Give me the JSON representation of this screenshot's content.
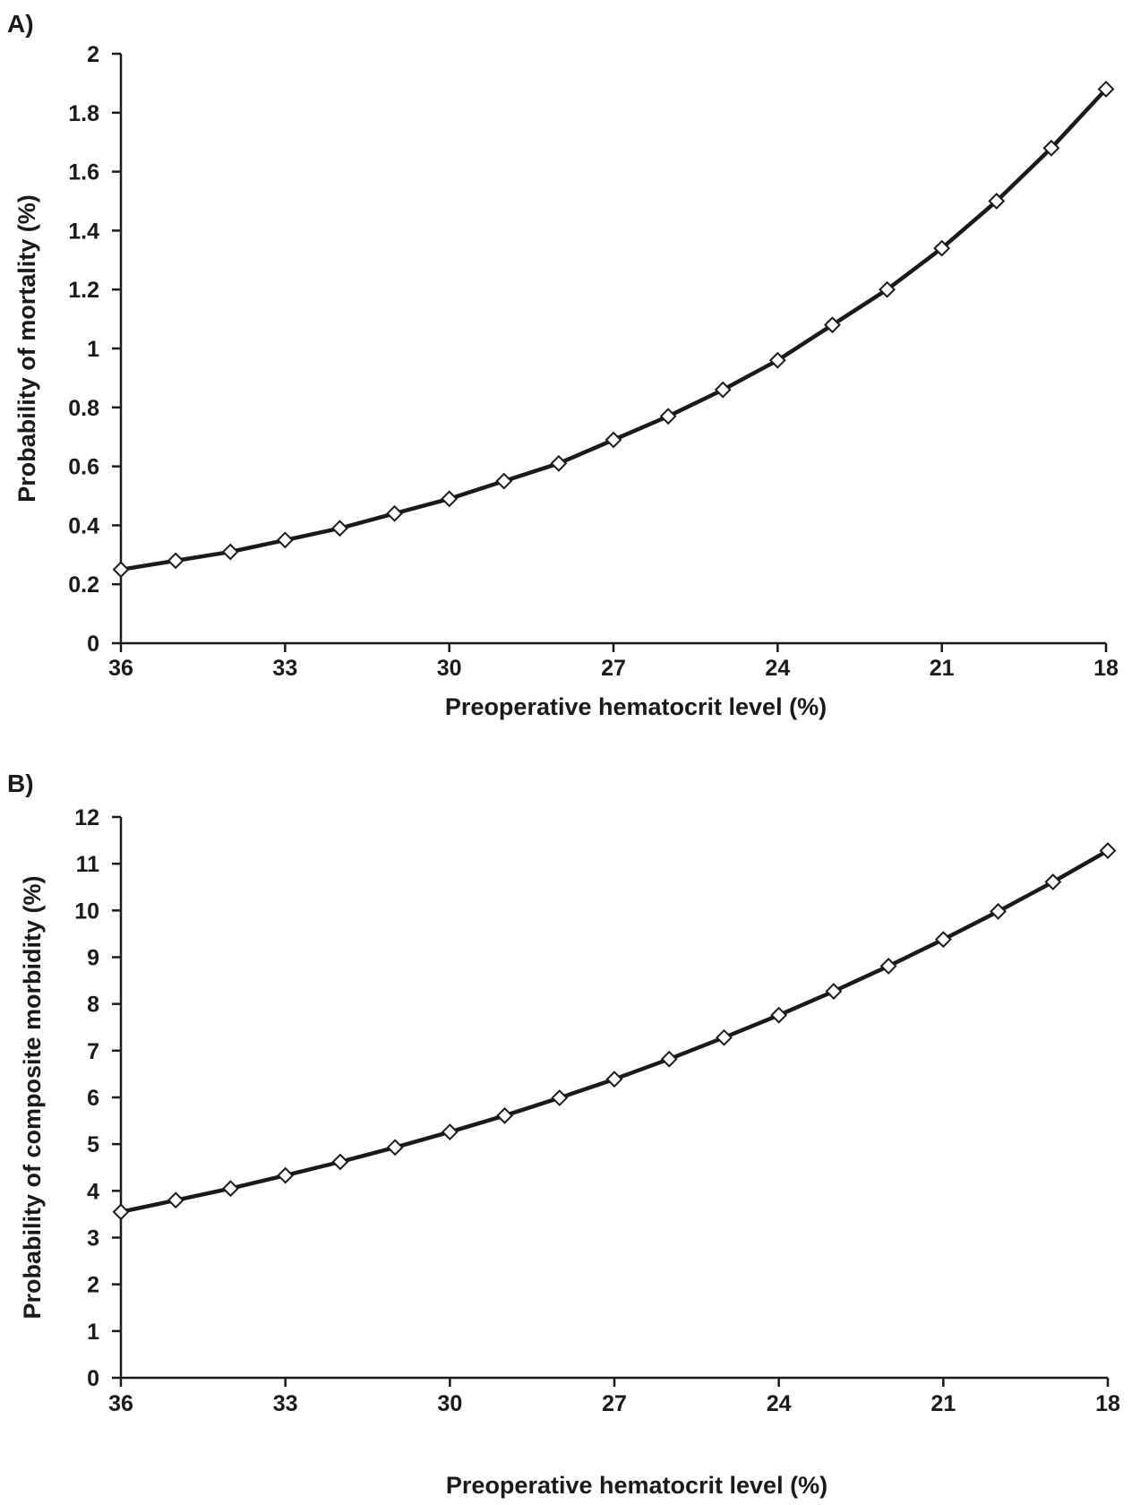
{
  "chart_data": [
    {
      "type": "line",
      "panel_label": "A)",
      "xlabel": "Preoperative hematocrit level (%)",
      "ylabel": "Probability of mortality (%)",
      "xlim": [
        36,
        18
      ],
      "ylim": [
        0,
        2
      ],
      "x_ticks": [
        36,
        33,
        30,
        27,
        24,
        21,
        18
      ],
      "y_ticks": [
        0,
        0.2,
        0.4,
        0.6,
        0.8,
        1,
        1.2,
        1.4,
        1.6,
        1.8,
        2
      ],
      "x_tick_labels": [
        "36",
        "33",
        "30",
        "27",
        "24",
        "21",
        "18"
      ],
      "y_tick_labels": [
        "0",
        "0.2",
        "0.4",
        "0.6",
        "0.8",
        "1",
        "1.2",
        "1.4",
        "1.6",
        "1.8",
        "2"
      ],
      "x": [
        36,
        35,
        34,
        33,
        32,
        31,
        30,
        29,
        28,
        27,
        26,
        25,
        24,
        23,
        22,
        21,
        20,
        19,
        18
      ],
      "series": [
        {
          "values": [
            0.25,
            0.28,
            0.31,
            0.35,
            0.39,
            0.44,
            0.49,
            0.55,
            0.61,
            0.69,
            0.77,
            0.86,
            0.96,
            1.08,
            1.2,
            1.34,
            1.5,
            1.68,
            1.88
          ]
        }
      ]
    },
    {
      "type": "line",
      "panel_label": "B)",
      "xlabel": "Preoperative hematocrit level (%)",
      "ylabel": "Probability of composite morbidity (%)",
      "xlim": [
        36,
        18
      ],
      "ylim": [
        0,
        12
      ],
      "x_ticks": [
        36,
        33,
        30,
        27,
        24,
        21,
        18
      ],
      "y_ticks": [
        0,
        1,
        2,
        3,
        4,
        5,
        6,
        7,
        8,
        9,
        10,
        11,
        12
      ],
      "x_tick_labels": [
        "36",
        "33",
        "30",
        "27",
        "24",
        "21",
        "18"
      ],
      "y_tick_labels": [
        "0",
        "1",
        "2",
        "3",
        "4",
        "5",
        "6",
        "7",
        "8",
        "9",
        "10",
        "11",
        "12"
      ],
      "x": [
        36,
        35,
        34,
        33,
        32,
        31,
        30,
        29,
        28,
        27,
        26,
        25,
        24,
        23,
        22,
        21,
        20,
        19,
        18
      ],
      "series": [
        {
          "values": [
            3.55,
            3.8,
            4.05,
            4.33,
            4.62,
            4.93,
            5.26,
            5.61,
            5.99,
            6.39,
            6.82,
            7.28,
            7.76,
            8.27,
            8.81,
            9.38,
            9.98,
            10.61,
            11.28
          ]
        }
      ]
    }
  ]
}
